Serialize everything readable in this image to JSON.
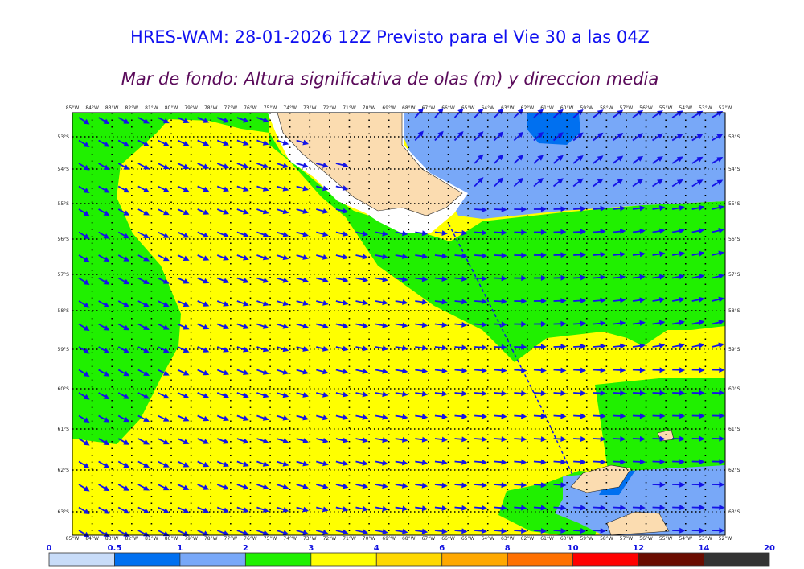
{
  "header": {
    "title": "HRES-WAM: 28-01-2026 12Z Previsto para el Vie 30 a las 04Z",
    "subtitle": "Mar de fondo: Altura significativa de olas (m) y direccion media"
  },
  "map": {
    "lon_labels": [
      "85°W",
      "84°W",
      "83°W",
      "82°W",
      "81°W",
      "80°W",
      "79°W",
      "78°W",
      "77°W",
      "76°W",
      "75°W",
      "74°W",
      "73°W",
      "72°W",
      "71°W",
      "70°W",
      "69°W",
      "68°W",
      "67°W",
      "66°W",
      "65°W",
      "64°W",
      "63°W",
      "62°W",
      "61°W",
      "60°W",
      "59°W",
      "58°W",
      "57°W",
      "56°W",
      "55°W",
      "54°W",
      "53°W",
      "52°W"
    ],
    "lat_labels": [
      "53°S",
      "54°S",
      "55°S",
      "56°S",
      "57°S",
      "58°S",
      "59°S",
      "60°S",
      "61°S",
      "62°S",
      "63°S"
    ],
    "colors": {
      "land": "#fbdcb0",
      "arrow": "#1414e6",
      "track": "#1414e6"
    }
  },
  "colorbar": {
    "labels": [
      "0",
      "0.5",
      "1",
      "2",
      "3",
      "4",
      "6",
      "8",
      "10",
      "12",
      "14",
      "20"
    ],
    "colors": [
      "#c8dcf8",
      "#0070f0",
      "#78a8f8",
      "#20f000",
      "#ffff00",
      "#ffd800",
      "#ffa800",
      "#ff7000",
      "#ff0000",
      "#6a0c00",
      "#333333"
    ]
  }
}
